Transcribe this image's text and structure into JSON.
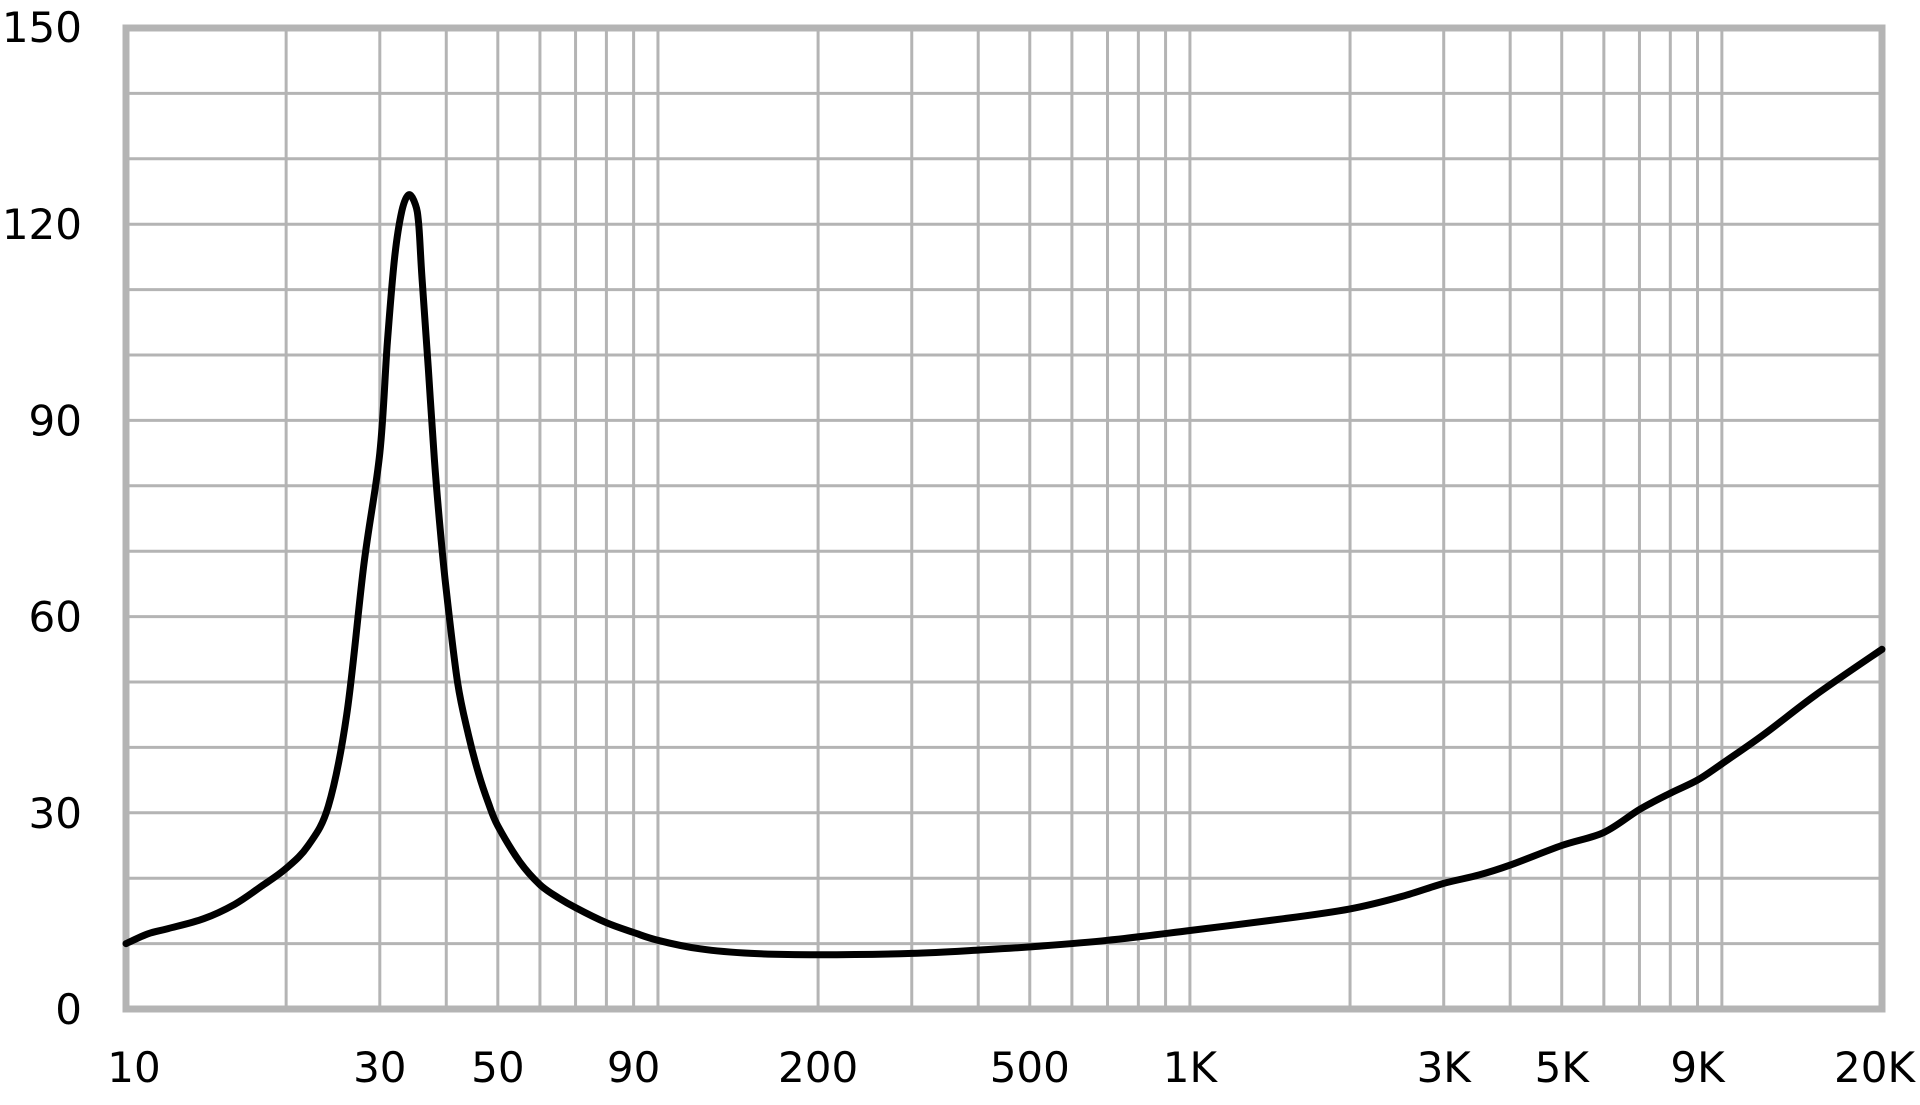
{
  "chart_data": {
    "type": "line",
    "title": "",
    "xlabel": "",
    "ylabel": "",
    "x_scale": "log",
    "xlim": [
      10,
      20000
    ],
    "ylim": [
      0,
      150
    ],
    "grid": true,
    "x_ticks": [
      {
        "value": 10,
        "label": "10"
      },
      {
        "value": 30,
        "label": "30"
      },
      {
        "value": 50,
        "label": "50"
      },
      {
        "value": 90,
        "label": "90"
      },
      {
        "value": 200,
        "label": "200"
      },
      {
        "value": 500,
        "label": "500"
      },
      {
        "value": 1000,
        "label": "1K"
      },
      {
        "value": 3000,
        "label": "3K"
      },
      {
        "value": 5000,
        "label": "5K"
      },
      {
        "value": 9000,
        "label": "9K"
      },
      {
        "value": 20000,
        "label": "20K"
      }
    ],
    "x_gridlines": [
      20,
      30,
      40,
      50,
      60,
      70,
      80,
      90,
      100,
      200,
      300,
      400,
      500,
      600,
      700,
      800,
      900,
      1000,
      2000,
      3000,
      4000,
      5000,
      6000,
      7000,
      8000,
      9000,
      10000
    ],
    "y_ticks": [
      {
        "value": 0,
        "label": "0"
      },
      {
        "value": 30,
        "label": "30"
      },
      {
        "value": 60,
        "label": "60"
      },
      {
        "value": 90,
        "label": "90"
      },
      {
        "value": 120,
        "label": "120"
      },
      {
        "value": 150,
        "label": "150"
      }
    ],
    "y_gridlines": [
      10,
      20,
      30,
      40,
      50,
      60,
      70,
      80,
      90,
      100,
      110,
      120,
      130,
      140
    ],
    "colors": {
      "line": "#000000",
      "grid": "#b4b4b4",
      "frame": "#b4b4b4"
    },
    "series": [
      {
        "x": [
          10,
          11,
          12,
          14,
          16,
          18,
          20,
          22,
          24,
          26,
          28,
          30,
          31,
          32,
          33,
          34,
          35,
          35.5,
          36,
          37,
          38,
          39,
          40,
          42,
          44,
          46,
          48,
          50,
          55,
          60,
          65,
          70,
          80,
          90,
          100,
          120,
          150,
          200,
          300,
          400,
          500,
          700,
          1000,
          1500,
          2000,
          2500,
          3000,
          3500,
          4000,
          5000,
          6000,
          7000,
          8000,
          9000,
          10000,
          12000,
          15000,
          20000
        ],
        "y": [
          10,
          11.5,
          12.3,
          13.8,
          16,
          18.8,
          21.5,
          25,
          31,
          45,
          68,
          85,
          102,
          115,
          122,
          124.5,
          123,
          120,
          112,
          98,
          84,
          73,
          64,
          50,
          42,
          36,
          31.5,
          28,
          22.5,
          19,
          17,
          15.5,
          13.2,
          11.7,
          10.5,
          9.2,
          8.5,
          8.3,
          8.5,
          9.0,
          9.5,
          10.5,
          12,
          13.8,
          15.3,
          17.2,
          19.2,
          20.5,
          22,
          25,
          27,
          30.5,
          33,
          35,
          37.5,
          42,
          48,
          55
        ]
      }
    ]
  }
}
